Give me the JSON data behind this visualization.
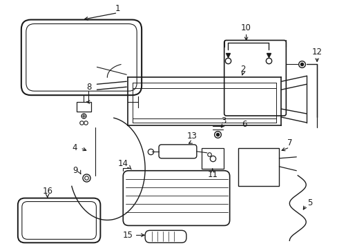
{
  "bg_color": "#ffffff",
  "line_color": "#1a1a1a",
  "fig_width": 4.89,
  "fig_height": 3.6,
  "label_fontsize": 8.5
}
